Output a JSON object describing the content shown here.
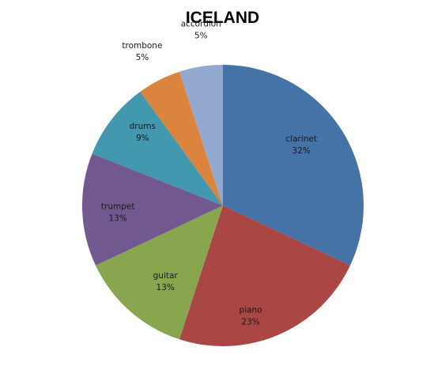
{
  "chart_data": {
    "type": "pie",
    "title": "ICELAND",
    "start_angle_deg": 0,
    "direction": "clockwise",
    "legend": "none",
    "slices": [
      {
        "label": "clarinet",
        "value": 32,
        "percent_label": "32%",
        "color": "#4572A7"
      },
      {
        "label": "piano",
        "value": 23,
        "percent_label": "23%",
        "color": "#AA4643"
      },
      {
        "label": "guitar",
        "value": 13,
        "percent_label": "13%",
        "color": "#89A54E"
      },
      {
        "label": "trumpet",
        "value": 13,
        "percent_label": "13%",
        "color": "#71588F"
      },
      {
        "label": "drums",
        "value": 9,
        "percent_label": "9%",
        "color": "#4198AF"
      },
      {
        "label": "trombone",
        "value": 5,
        "percent_label": "5%",
        "color": "#DB843D"
      },
      {
        "label": "accordion",
        "value": 5,
        "percent_label": "5%",
        "color": "#93A9CF"
      }
    ]
  }
}
